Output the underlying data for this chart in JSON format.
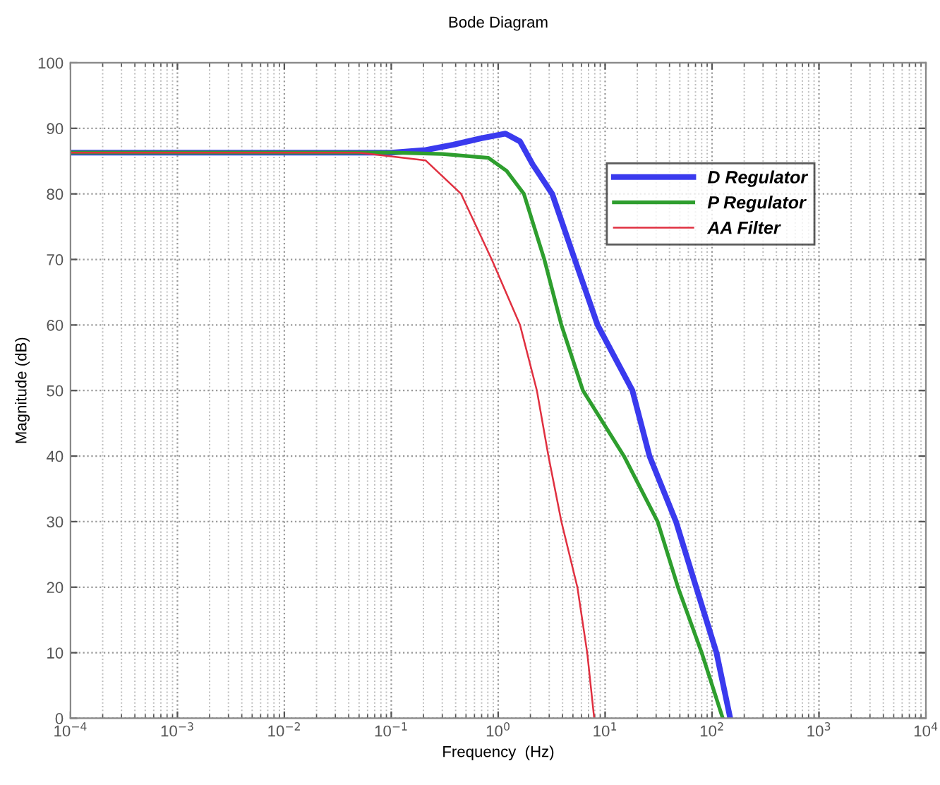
{
  "chart_data": {
    "type": "line",
    "title": "Bode Diagram",
    "xlabel": "Frequency  (Hz)",
    "ylabel": "Magnitude (dB)",
    "log": "x",
    "grid": true,
    "legend": "top right",
    "line_style": "solid",
    "marker": "none",
    "xlim": [
      0.0001,
      10000
    ],
    "ylim": [
      0,
      100
    ],
    "xticks": [
      {
        "value": 0.0001,
        "label": "10$^{−4}$"
      },
      {
        "value": 0.001,
        "label": "10$^{−3}$"
      },
      {
        "value": 0.01,
        "label": "10$^{−2}$"
      },
      {
        "value": 0.1,
        "label": "10$^{−1}$"
      },
      {
        "value": 1,
        "label": "10$^{0}$"
      },
      {
        "value": 10,
        "label": "10$^{1}$"
      },
      {
        "value": 100,
        "label": "10$^{2}$"
      },
      {
        "value": 1000,
        "label": "10$^{3}$"
      },
      {
        "value": 10000,
        "label": "10$^{4}$"
      }
    ],
    "yticks": [
      0,
      10,
      20,
      30,
      40,
      50,
      60,
      70,
      80,
      90,
      100
    ],
    "series": [
      {
        "name": "D Regulator",
        "color": "#3a3aee",
        "x": [
          0.0001,
          0.01,
          0.1,
          0.21,
          0.38,
          0.7,
          1.17,
          1.6,
          2.1,
          3.2,
          5.2,
          8.5,
          18,
          26,
          46,
          71,
          110,
          148
        ],
        "values": [
          86.3,
          86.3,
          86.3,
          86.7,
          87.5,
          88.5,
          89.2,
          88.0,
          84.5,
          80,
          70,
          60,
          50,
          40,
          30,
          20,
          10,
          0
        ]
      },
      {
        "name": "P Regulator",
        "color": "#2e9e2e",
        "x": [
          0.0001,
          0.01,
          0.1,
          0.3,
          0.81,
          1.2,
          1.74,
          2.7,
          3.9,
          6.2,
          15,
          31,
          48,
          80,
          126
        ],
        "values": [
          86.3,
          86.3,
          86.3,
          86.1,
          85.5,
          83.5,
          80,
          70,
          60,
          50,
          40,
          30,
          20,
          10,
          0
        ]
      },
      {
        "name": "AA Filter",
        "color": "#e03040",
        "x": [
          0.0001,
          0.01,
          0.05,
          0.21,
          0.45,
          0.87,
          1.6,
          2.3,
          2.95,
          3.9,
          5.5,
          6.8,
          7.9
        ],
        "values": [
          86.3,
          86.3,
          86.3,
          85.1,
          80,
          70,
          60,
          50,
          40,
          30,
          20,
          10,
          0
        ]
      }
    ]
  }
}
